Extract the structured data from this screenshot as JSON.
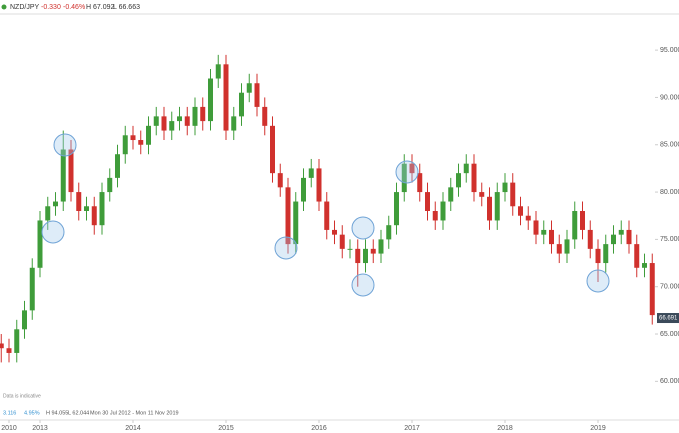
{
  "chart_data": {
    "type": "candlestick",
    "symbol": "NZD/JPY",
    "change": "-0.330",
    "change_pct": "-0.46%",
    "high_label": "H 67.092",
    "low_label": "L 66.663",
    "footer": {
      "change": "3.116",
      "change_pct": "4.95%",
      "high_label": "H 94.055",
      "low_label": "L 62.044",
      "range": "Mon 30 Jul 2012 - Mon 11 Nov 2019",
      "note": "Data is indicative"
    },
    "last_price": 66.691,
    "up_color": "#3f9c3a",
    "down_color": "#d0312d",
    "categories": [
      null,
      null,
      null,
      null,
      null,
      null,
      null,
      null,
      null,
      null,
      null,
      null,
      null,
      null,
      null,
      null,
      null,
      null,
      null,
      null,
      null,
      null,
      null,
      null,
      null,
      null,
      null,
      null,
      null,
      null,
      null,
      null,
      null,
      null,
      null,
      null,
      null,
      null,
      null,
      null,
      null,
      null,
      null,
      null,
      null,
      null,
      null,
      null,
      null,
      null,
      null,
      null,
      null,
      null,
      null,
      null,
      null,
      null,
      null,
      null,
      null,
      null,
      null,
      null,
      null,
      null,
      null,
      null,
      null,
      null,
      null,
      null,
      null,
      null,
      null,
      null,
      null,
      null,
      null,
      null,
      null,
      null,
      null,
      null,
      null
    ],
    "open": [
      64,
      63.5,
      63,
      65.5,
      67.5,
      72,
      77,
      78.5,
      79,
      84.5,
      80,
      78,
      78.5,
      76.5,
      80,
      81.5,
      84,
      86,
      85.5,
      85,
      87,
      88,
      86.5,
      87.5,
      88,
      87,
      89,
      87.5,
      92,
      93.5,
      86.5,
      88,
      90.5,
      91.5,
      89,
      87,
      82,
      80.5,
      74.5,
      79,
      81.5,
      82.5,
      79,
      76,
      75.5,
      74,
      74,
      72.5,
      74,
      73.5,
      75,
      76.5,
      80,
      83,
      82,
      80,
      78,
      77,
      79,
      80.5,
      82,
      83,
      80,
      79.5,
      77,
      80,
      81,
      78.5,
      77.5,
      77,
      75.5,
      76,
      74.5,
      73.5,
      75,
      78,
      76,
      74,
      72.5,
      74.5,
      75.5,
      76,
      74.5,
      72,
      72.5
    ],
    "high": [
      65,
      64.5,
      66.5,
      68.5,
      73,
      78,
      79.5,
      80,
      86.5,
      85.5,
      81,
      79.5,
      79.5,
      81,
      82.5,
      85,
      87,
      87,
      86.5,
      88,
      89,
      89,
      88.5,
      89,
      89,
      90,
      90,
      93,
      94.5,
      94.5,
      89,
      91.5,
      92.5,
      92.5,
      90,
      88,
      83,
      81.5,
      80,
      82.5,
      83.5,
      83.5,
      80,
      77,
      76.5,
      75,
      75,
      75,
      75,
      76,
      77.5,
      81,
      84,
      84,
      83,
      81,
      79,
      80,
      81.5,
      83,
      84,
      84,
      81,
      80.5,
      81,
      82,
      82,
      79.5,
      78.5,
      78,
      77,
      77,
      75.5,
      76,
      79,
      79,
      77,
      75,
      75.5,
      76.5,
      77,
      77,
      75.5,
      73.5,
      73.5
    ],
    "low": [
      62,
      62,
      62,
      64.5,
      66.5,
      71,
      76,
      77.5,
      78,
      79,
      77,
      77,
      75.5,
      75.5,
      79,
      80.5,
      83,
      84.5,
      84,
      84,
      86,
      85.5,
      85.5,
      86.5,
      86,
      86,
      86.5,
      86.5,
      91,
      85.5,
      85.5,
      87,
      89.5,
      88,
      86,
      81,
      79.5,
      73.5,
      73.5,
      78,
      80.5,
      78,
      75,
      74.5,
      73,
      73,
      70,
      71.5,
      72.5,
      72.5,
      74,
      75.5,
      79,
      81,
      79,
      77,
      76,
      76,
      78,
      79.5,
      81,
      79,
      78.5,
      76,
      76,
      79,
      77.5,
      76.5,
      76,
      74.5,
      74.5,
      73.5,
      72.5,
      72.5,
      74,
      75,
      73,
      70.5,
      71.5,
      73.5,
      74.5,
      73.5,
      71,
      71,
      66
    ],
    "close": [
      63.5,
      63,
      65.5,
      67.5,
      72,
      77,
      78.5,
      79,
      84.5,
      80,
      78,
      78.5,
      76.5,
      80,
      81.5,
      84,
      86,
      85.5,
      85,
      87,
      88,
      86.5,
      87.5,
      88,
      87,
      89,
      87.5,
      92,
      93.5,
      86.5,
      88,
      90.5,
      91.5,
      89,
      87,
      82,
      80.5,
      74.5,
      79,
      81.5,
      82.5,
      79,
      76,
      75.5,
      74,
      74,
      72.5,
      74,
      73.5,
      75,
      76.5,
      80,
      83,
      82,
      80,
      78,
      77,
      79,
      80.5,
      82,
      83,
      80,
      79.5,
      77,
      80,
      81,
      78.5,
      77.5,
      77,
      75.5,
      76,
      74.5,
      73.5,
      75,
      78,
      76,
      74,
      72.5,
      74.5,
      75.5,
      76,
      74.5,
      72,
      72.5,
      67
    ],
    "ylim": [
      57.5,
      98.5
    ],
    "yticks": [
      {
        "value": 60,
        "label": "60.000"
      },
      {
        "value": 65,
        "label": "65.000"
      },
      {
        "value": 70,
        "label": "70.000"
      },
      {
        "value": 75,
        "label": "75.000"
      },
      {
        "value": 80,
        "label": "80.000"
      },
      {
        "value": 85,
        "label": "85.000"
      },
      {
        "value": 90,
        "label": "90.000"
      },
      {
        "value": 95,
        "label": "95.000"
      }
    ],
    "xticks": [
      {
        "value": 1,
        "label": "2010"
      },
      {
        "value": 5,
        "label": "2013"
      },
      {
        "value": 17,
        "label": "2014"
      },
      {
        "value": 29,
        "label": "2015"
      },
      {
        "value": 41,
        "label": "2016"
      },
      {
        "value": 53,
        "label": "2017"
      },
      {
        "value": 65,
        "label": "2018"
      },
      {
        "value": 77,
        "label": "2019"
      }
    ]
  }
}
